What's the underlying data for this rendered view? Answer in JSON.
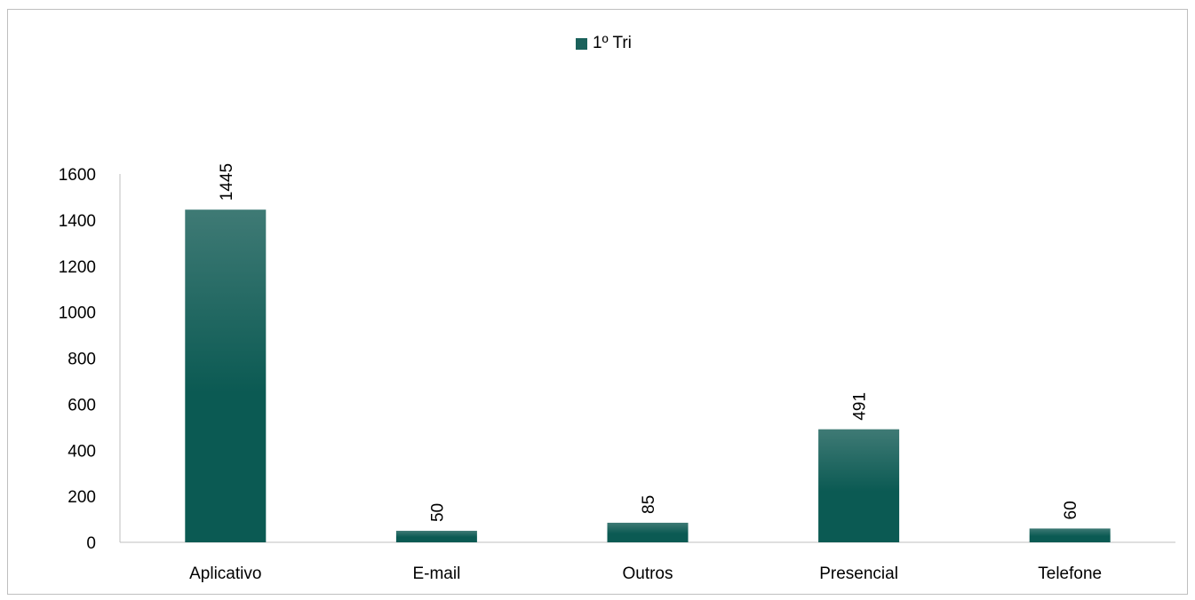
{
  "chart_data": {
    "type": "bar",
    "categories": [
      "Aplicativo",
      "E-mail",
      "Outros",
      "Presencial",
      "Telefone"
    ],
    "series": [
      {
        "name": "1º Tri",
        "values": [
          1445,
          50,
          85,
          491,
          60
        ]
      }
    ],
    "data_labels": [
      "1445",
      "50",
      "85",
      "491",
      "60"
    ],
    "yticks": [
      "0",
      "200",
      "400",
      "600",
      "800",
      "1000",
      "1200",
      "1400",
      "1600"
    ],
    "ylim": [
      0,
      1600
    ],
    "grid": false,
    "legend_position": "top-center",
    "colors": {
      "bar_top": "#3f7a75",
      "bar_bottom": "#0b5a53",
      "axis": "#bfbfbf"
    }
  }
}
